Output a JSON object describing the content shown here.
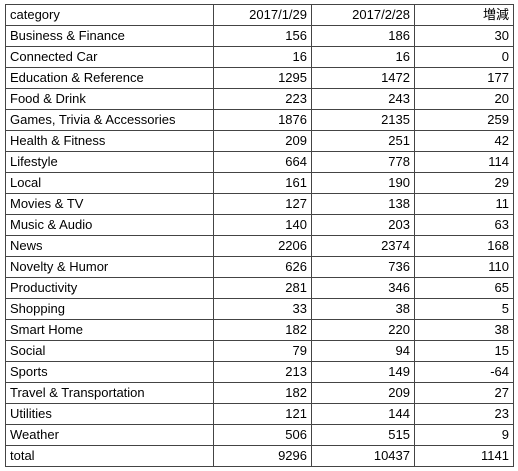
{
  "table": {
    "header": [
      "category",
      "2017/1/29",
      "2017/2/28",
      "増減"
    ],
    "rows": [
      [
        "Business & Finance",
        156,
        186,
        30
      ],
      [
        "Connected Car",
        16,
        16,
        0
      ],
      [
        "Education & Reference",
        1295,
        1472,
        177
      ],
      [
        "Food & Drink",
        223,
        243,
        20
      ],
      [
        "Games, Trivia & Accessories",
        1876,
        2135,
        259
      ],
      [
        "Health & Fitness",
        209,
        251,
        42
      ],
      [
        "Lifestyle",
        664,
        778,
        114
      ],
      [
        "Local",
        161,
        190,
        29
      ],
      [
        "Movies & TV",
        127,
        138,
        11
      ],
      [
        "Music & Audio",
        140,
        203,
        63
      ],
      [
        "News",
        2206,
        2374,
        168
      ],
      [
        "Novelty & Humor",
        626,
        736,
        110
      ],
      [
        "Productivity",
        281,
        346,
        65
      ],
      [
        "Shopping",
        33,
        38,
        5
      ],
      [
        "Smart Home",
        182,
        220,
        38
      ],
      [
        "Social",
        79,
        94,
        15
      ],
      [
        "Sports",
        213,
        149,
        -64
      ],
      [
        "Travel & Transportation",
        182,
        209,
        27
      ],
      [
        "Utilities",
        121,
        144,
        23
      ],
      [
        "Weather",
        506,
        515,
        9
      ],
      [
        "total",
        9296,
        10437,
        1141
      ]
    ]
  }
}
